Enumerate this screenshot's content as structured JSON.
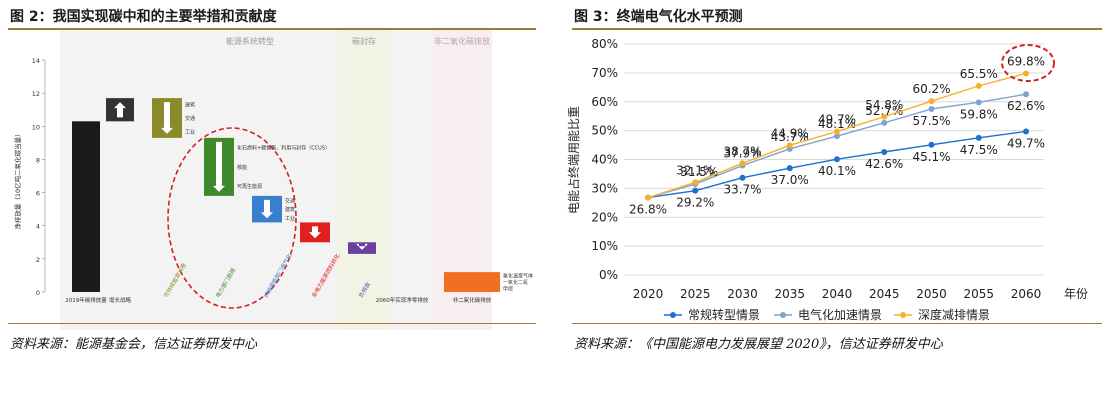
{
  "left_figure": {
    "title": "图 2：我国实现碳中和的主要举措和贡献度",
    "source": "资料来源：能源基金会，信达证券研发中心",
    "chart_data": {
      "type": "bar",
      "title": "",
      "ylabel": "净排放量（10亿吨二氧化碳当量）",
      "ylim": [
        0,
        14
      ],
      "y_ticks": [
        "14",
        "12",
        "10",
        "8",
        "6",
        "4",
        "2",
        "0"
      ],
      "section_labels": {
        "energy": "能源系统转型",
        "sink": "碳封存",
        "non_co2": "非二氧化碳排放"
      },
      "bars": [
        {
          "label": "2019年碳排放量",
          "value": 10.3,
          "color": "#1a1a1a"
        },
        {
          "label": "增长战略",
          "value": 1.4,
          "color": "#333333"
        },
        {
          "label": "可持续能源消费",
          "value": 2.4,
          "color": "#8a8a2a",
          "sublabels": [
            "建筑",
            "交通",
            "工业"
          ]
        },
        {
          "label": "电力部门脱碳",
          "value": 3.5,
          "color": "#3e8a2a",
          "sublabels": [
            "化石燃料+碳捕集、利用与封存（CCUS）",
            "核能",
            "可再生能源"
          ]
        },
        {
          "label": "终端用能部门电气化",
          "value": 1.6,
          "color": "#3a7fcf",
          "sublabels": [
            "交通",
            "建筑",
            "工业"
          ]
        },
        {
          "label": "非电力能源燃料转化",
          "value": 1.2,
          "color": "#e02020"
        },
        {
          "label": "负排放",
          "value": 0.7,
          "color": "#6a3fa0"
        },
        {
          "label": "2060年实现净零排放",
          "value": 0,
          "color": "#1a1a1a"
        },
        {
          "label": "非二氧化碳排放",
          "value": 1.2,
          "color": "#f07020",
          "sublabels": [
            "氟化温室气体",
            "一氧化二氮",
            "甲烷"
          ]
        }
      ]
    }
  },
  "right_figure": {
    "title": "图 3：终端电气化水平预测",
    "source": "资料来源：《中国能源电力发展展望 2020》，信达证券研发中心",
    "chart_data": {
      "type": "line",
      "title": "",
      "ylabel": "电能占终端用能比重",
      "xlabel": "年份",
      "x": [
        "2020",
        "2025",
        "2030",
        "2035",
        "2040",
        "2045",
        "2050",
        "2055",
        "2060"
      ],
      "ylim": [
        0,
        80
      ],
      "y_ticks": [
        "0%",
        "10%",
        "20%",
        "30%",
        "40%",
        "50%",
        "60%",
        "70%",
        "80%"
      ],
      "grid": true,
      "legend": "bottom",
      "highlight": "69.8%",
      "series": [
        {
          "name": "常规转型情景",
          "color": "#1f6fd0",
          "values": [
            26.8,
            29.2,
            33.7,
            37.0,
            40.1,
            42.6,
            45.1,
            47.5,
            49.7
          ],
          "labels": [
            "26.8%",
            "29.2%",
            "33.7%",
            "37.0%",
            "40.1%",
            "42.6%",
            "45.1%",
            "47.5%",
            "49.7%"
          ]
        },
        {
          "name": "电气化加速情景",
          "color": "#7fa3cf",
          "values": [
            26.8,
            31.5,
            37.9,
            43.7,
            48.1,
            52.7,
            57.5,
            59.8,
            62.6
          ],
          "labels": [
            "",
            "31.5%",
            "37.9%",
            "43.7%",
            "48.1%",
            "52.7%",
            "57.5%",
            "59.8%",
            "62.6%"
          ]
        },
        {
          "name": "深度减排情景",
          "color": "#f5b12b",
          "values": [
            26.8,
            32.1,
            38.7,
            44.9,
            49.7,
            54.8,
            60.2,
            65.5,
            69.8
          ],
          "labels": [
            "",
            "32.1%",
            "38.7%",
            "44.9%",
            "49.7%",
            "54.8%",
            "60.2%",
            "65.5%",
            "69.8%"
          ]
        }
      ]
    }
  }
}
